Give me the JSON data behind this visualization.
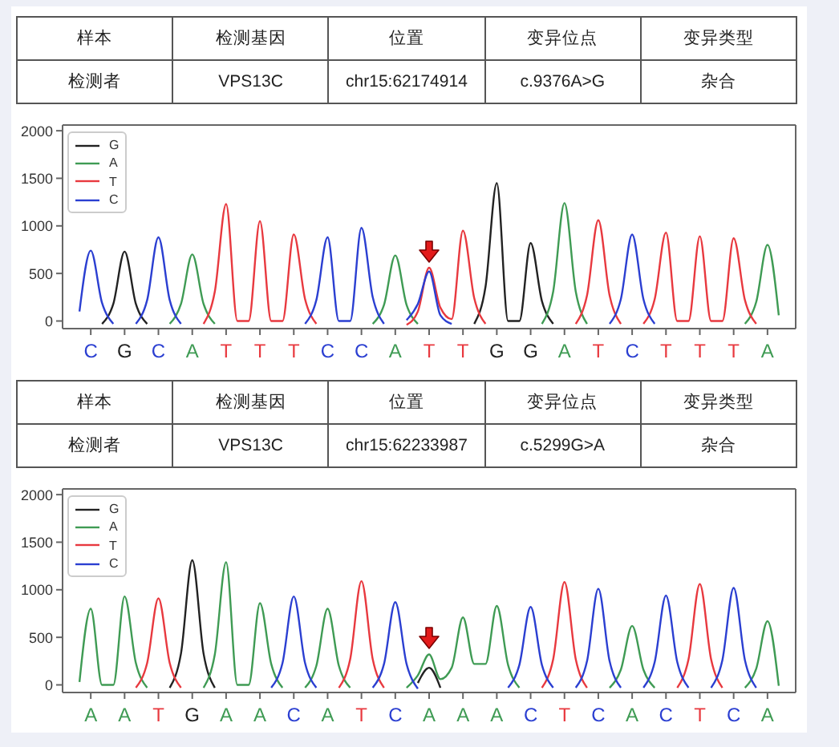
{
  "chart_data": [
    {
      "type": "other",
      "categories": [
        "样本",
        "检测基因",
        "位置",
        "变异位点",
        "变异类型"
      ],
      "annotations": [
        "检测者",
        "VPS13C",
        "chr15:62174914",
        "c.9376A>G",
        "杂合"
      ]
    },
    {
      "type": "line",
      "categories": [
        null,
        null,
        "C",
        null,
        null,
        "G",
        null,
        null,
        "C",
        null,
        null,
        "A",
        null,
        null,
        "T",
        null,
        null,
        "T",
        null,
        null,
        "T",
        null,
        null,
        "C",
        null,
        null,
        "C",
        null,
        null,
        "A",
        null,
        null,
        "T",
        null,
        null,
        "T",
        null,
        null,
        "G",
        null,
        null,
        "G",
        null,
        null,
        "A",
        null,
        null,
        "T",
        null,
        null,
        "C",
        null,
        null,
        "T",
        null,
        null,
        "T",
        null,
        null,
        "T",
        null,
        null,
        "A",
        null,
        null
      ],
      "series": [
        {
          "name": "G",
          "color": "#222222",
          "values": [
            null,
            null,
            null,
            -30,
            180,
            730,
            180,
            -30,
            null,
            null,
            null,
            null,
            null,
            null,
            null,
            null,
            null,
            null,
            null,
            null,
            null,
            null,
            null,
            null,
            null,
            null,
            null,
            null,
            null,
            null,
            null,
            null,
            null,
            null,
            null,
            null,
            -30,
            360,
            1450,
            0,
            0,
            820,
            210,
            -30,
            null,
            null,
            null,
            null,
            null,
            null,
            null,
            null,
            null,
            null,
            null,
            null,
            null,
            null,
            null,
            null,
            null,
            null,
            null,
            null,
            null
          ]
        },
        {
          "name": "A",
          "color": "#3f9b54",
          "values": [
            null,
            null,
            null,
            null,
            null,
            null,
            null,
            null,
            null,
            -30,
            180,
            700,
            180,
            -30,
            null,
            null,
            null,
            null,
            null,
            null,
            null,
            null,
            null,
            null,
            null,
            null,
            null,
            -30,
            170,
            690,
            170,
            -30,
            null,
            null,
            null,
            null,
            null,
            null,
            null,
            null,
            null,
            null,
            -30,
            310,
            1240,
            310,
            -30,
            null,
            null,
            null,
            null,
            null,
            null,
            null,
            null,
            null,
            null,
            null,
            null,
            null,
            -30,
            200,
            800,
            60,
            null
          ]
        },
        {
          "name": "T",
          "color": "#e8393f",
          "values": [
            null,
            null,
            null,
            null,
            null,
            null,
            null,
            null,
            null,
            null,
            null,
            null,
            -30,
            310,
            1230,
            0,
            0,
            1050,
            0,
            0,
            910,
            230,
            -30,
            null,
            null,
            null,
            null,
            null,
            null,
            null,
            -40,
            100,
            560,
            140,
            20,
            950,
            240,
            -30,
            null,
            null,
            null,
            null,
            null,
            null,
            null,
            -30,
            270,
            1060,
            270,
            -30,
            null,
            -30,
            230,
            930,
            0,
            0,
            890,
            0,
            0,
            870,
            220,
            -30,
            null,
            null,
            null
          ]
        },
        {
          "name": "C",
          "color": "#2b3fd1",
          "values": [
            null,
            100,
            740,
            190,
            -30,
            null,
            -30,
            220,
            880,
            220,
            -30,
            null,
            null,
            null,
            null,
            null,
            null,
            null,
            null,
            null,
            null,
            -30,
            220,
            880,
            0,
            0,
            980,
            250,
            -30,
            null,
            10,
            180,
            520,
            60,
            -30,
            null,
            null,
            null,
            null,
            null,
            null,
            null,
            null,
            null,
            null,
            null,
            null,
            null,
            -30,
            230,
            910,
            230,
            -30,
            null,
            null,
            null,
            null,
            null,
            null,
            null,
            null,
            null,
            null,
            null,
            null
          ]
        }
      ],
      "ylim": [
        -80,
        2060
      ],
      "yticks": [
        0,
        500,
        1000,
        1500,
        2000
      ],
      "legend": "top left",
      "line_style": "solid"
    },
    {
      "type": "other",
      "categories": [
        "样本",
        "检测基因",
        "位置",
        "变异位点",
        "变异类型"
      ],
      "annotations": [
        "检测者",
        "VPS13C",
        "chr15:62233987",
        "c.5299G>A",
        "杂合"
      ]
    },
    {
      "type": "line",
      "categories": [
        null,
        null,
        "A",
        null,
        null,
        "A",
        null,
        null,
        "T",
        null,
        null,
        "G",
        null,
        null,
        "A",
        null,
        null,
        "A",
        null,
        null,
        "C",
        null,
        null,
        "A",
        null,
        null,
        "T",
        null,
        null,
        "C",
        null,
        null,
        "A",
        null,
        null,
        "A",
        null,
        null,
        "A",
        null,
        null,
        "C",
        null,
        null,
        "T",
        null,
        null,
        "C",
        null,
        null,
        "A",
        null,
        null,
        "C",
        null,
        null,
        "T",
        null,
        null,
        "C",
        null,
        null,
        "A",
        null,
        null
      ],
      "series": [
        {
          "name": "G",
          "color": "#222222",
          "values": [
            null,
            null,
            null,
            null,
            null,
            null,
            null,
            null,
            null,
            -30,
            330,
            1310,
            330,
            -30,
            null,
            null,
            null,
            null,
            null,
            null,
            null,
            null,
            null,
            null,
            null,
            null,
            null,
            null,
            null,
            null,
            null,
            20,
            180,
            -30,
            null,
            null,
            null,
            null,
            null,
            null,
            null,
            null,
            null,
            null,
            null,
            null,
            null,
            null,
            null,
            null,
            null,
            null,
            null,
            null,
            null,
            null,
            null,
            null,
            null,
            null,
            null,
            null,
            null,
            null,
            null
          ]
        },
        {
          "name": "A",
          "color": "#3f9b54",
          "values": [
            null,
            30,
            800,
            0,
            0,
            930,
            230,
            -30,
            null,
            null,
            null,
            null,
            -30,
            320,
            1290,
            0,
            0,
            860,
            220,
            -30,
            null,
            -30,
            200,
            800,
            200,
            -30,
            null,
            null,
            null,
            null,
            -30,
            100,
            320,
            60,
            180,
            710,
            220,
            220,
            830,
            210,
            -30,
            null,
            null,
            null,
            null,
            null,
            null,
            null,
            -30,
            160,
            620,
            160,
            -30,
            null,
            null,
            null,
            null,
            null,
            null,
            null,
            -30,
            170,
            670,
            -10,
            null
          ]
        },
        {
          "name": "T",
          "color": "#e8393f",
          "values": [
            null,
            null,
            null,
            null,
            null,
            null,
            -30,
            230,
            910,
            230,
            -30,
            null,
            null,
            null,
            null,
            null,
            null,
            null,
            null,
            null,
            null,
            null,
            null,
            null,
            -30,
            270,
            1090,
            270,
            -30,
            null,
            null,
            null,
            null,
            null,
            null,
            null,
            null,
            null,
            null,
            null,
            null,
            null,
            -30,
            270,
            1080,
            270,
            -30,
            null,
            null,
            null,
            null,
            null,
            null,
            null,
            -30,
            270,
            1060,
            270,
            -30,
            null,
            null,
            null,
            null,
            null,
            null
          ]
        },
        {
          "name": "C",
          "color": "#2b3fd1",
          "values": [
            null,
            null,
            null,
            null,
            null,
            null,
            null,
            null,
            null,
            null,
            null,
            null,
            null,
            null,
            null,
            null,
            null,
            null,
            -30,
            230,
            930,
            230,
            -30,
            null,
            null,
            null,
            null,
            -30,
            220,
            870,
            220,
            -40,
            null,
            null,
            null,
            null,
            null,
            null,
            null,
            -30,
            210,
            820,
            210,
            -30,
            null,
            -30,
            250,
            1010,
            250,
            -30,
            null,
            -30,
            240,
            940,
            240,
            -30,
            null,
            -30,
            260,
            1020,
            260,
            -30,
            null,
            null,
            null
          ]
        }
      ],
      "ylim": [
        -80,
        2060
      ],
      "yticks": [
        0,
        500,
        1000,
        1500,
        2000
      ],
      "legend": "top left",
      "line_style": "solid"
    }
  ]
}
